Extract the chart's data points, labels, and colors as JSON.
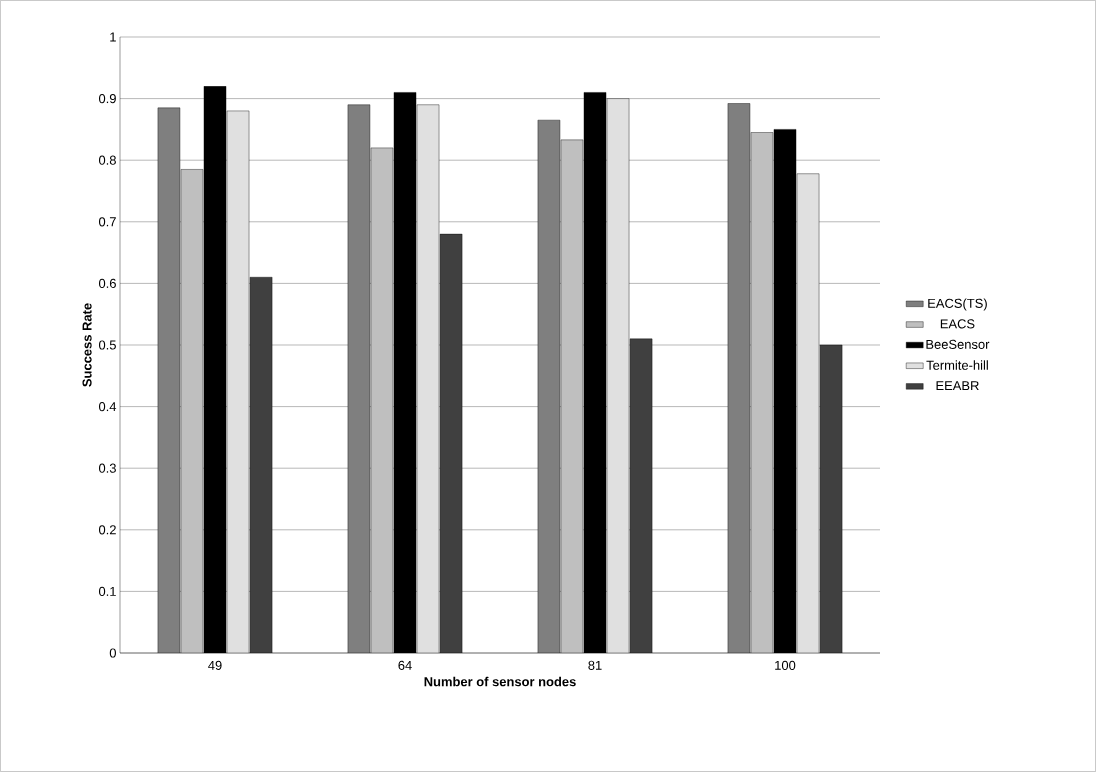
{
  "chart_data": {
    "type": "bar",
    "xlabel": "Number of sensor nodes",
    "ylabel": "Success Rate",
    "categories": [
      "49",
      "64",
      "81",
      "100"
    ],
    "series": [
      {
        "name": "EACS(TS)",
        "color": "#7f7f7f",
        "values": [
          0.885,
          0.89,
          0.865,
          0.892
        ]
      },
      {
        "name": "EACS",
        "color": "#bfbfbf",
        "values": [
          0.785,
          0.82,
          0.833,
          0.845
        ]
      },
      {
        "name": "BeeSensor",
        "color": "#000000",
        "values": [
          0.92,
          0.91,
          0.91,
          0.85
        ]
      },
      {
        "name": "Termite-hill",
        "color": "#e0e0e0",
        "values": [
          0.88,
          0.89,
          0.9,
          0.778
        ]
      },
      {
        "name": "EEABR",
        "color": "#404040",
        "values": [
          0.61,
          0.68,
          0.51,
          0.5
        ]
      }
    ],
    "ylim": [
      0,
      1
    ],
    "yticks": [
      0,
      0.1,
      0.2,
      0.3,
      0.4,
      0.5,
      0.6,
      0.7,
      0.8,
      0.9,
      1
    ],
    "grid": "y",
    "legend": "right"
  }
}
